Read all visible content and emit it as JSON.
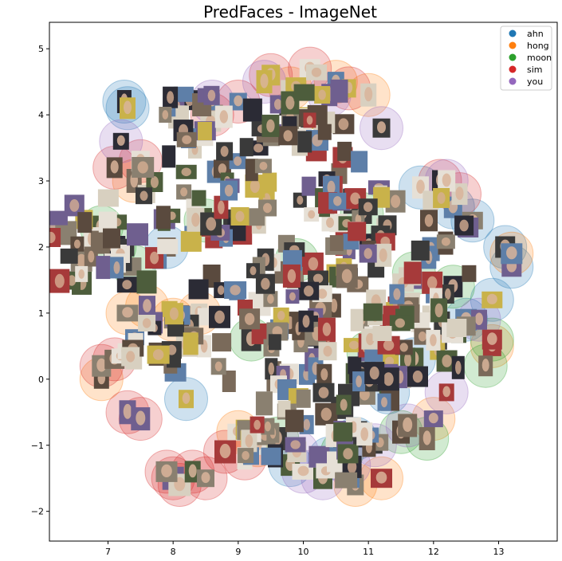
{
  "chart_data": {
    "type": "scatter",
    "title": "PredFaces - ImageNet",
    "xlabel": "",
    "ylabel": "",
    "xlim": [
      6.1,
      13.9
    ],
    "ylim": [
      -2.45,
      5.4
    ],
    "xticks": [
      7,
      8,
      9,
      10,
      11,
      12,
      13
    ],
    "yticks": [
      -2,
      -1,
      0,
      1,
      2,
      3,
      4,
      5
    ],
    "xtick_labels": [
      "7",
      "8",
      "9",
      "10",
      "11",
      "12",
      "13"
    ],
    "ytick_labels": [
      "−2",
      "−1",
      "0",
      "1",
      "2",
      "3",
      "4",
      "5"
    ],
    "grid": false,
    "legend_position": "top-right",
    "marker": "face-thumbnail over translucent circle",
    "series": [
      {
        "name": "ahn",
        "color": "#1f77b4",
        "points": [
          [
            7.25,
            4.2
          ],
          [
            7.3,
            4.1
          ],
          [
            11.8,
            2.9
          ],
          [
            12.3,
            2.6
          ],
          [
            12.6,
            2.4
          ],
          [
            13.1,
            2.0
          ],
          [
            13.2,
            1.7
          ],
          [
            12.9,
            1.2
          ],
          [
            12.5,
            0.9
          ],
          [
            11.7,
            0.3
          ],
          [
            11.3,
            -0.2
          ],
          [
            10.8,
            -0.9
          ],
          [
            10.4,
            -1.2
          ],
          [
            9.8,
            -1.3
          ],
          [
            8.2,
            -0.3
          ],
          [
            7.9,
            2.0
          ]
        ]
      },
      {
        "name": "hong",
        "color": "#ff7f0e",
        "points": [
          [
            7.3,
            1.0
          ],
          [
            7.6,
            1.1
          ],
          [
            8.0,
            0.9
          ],
          [
            8.4,
            1.0
          ],
          [
            10.5,
            4.5
          ],
          [
            11.0,
            4.3
          ],
          [
            13.2,
            1.9
          ],
          [
            12.9,
            0.5
          ],
          [
            11.2,
            -1.5
          ],
          [
            10.8,
            -1.6
          ],
          [
            9.3,
            -1.0
          ],
          [
            9.0,
            -0.8
          ],
          [
            6.9,
            0.0
          ],
          [
            7.4,
            3.0
          ],
          [
            9.8,
            4.4
          ],
          [
            12.0,
            -0.6
          ]
        ]
      },
      {
        "name": "moon",
        "color": "#2ca02c",
        "points": [
          [
            6.9,
            2.3
          ],
          [
            7.1,
            2.0
          ],
          [
            7.4,
            1.7
          ],
          [
            12.8,
            0.2
          ],
          [
            12.9,
            0.6
          ],
          [
            11.9,
            -0.9
          ],
          [
            11.5,
            -0.8
          ],
          [
            10.6,
            -1.1
          ],
          [
            9.6,
            -0.9
          ],
          [
            11.0,
            0.4
          ],
          [
            12.3,
            1.4
          ],
          [
            8.5,
            2.4
          ],
          [
            9.9,
            1.8
          ],
          [
            10.9,
            2.5
          ],
          [
            11.7,
            1.6
          ],
          [
            9.2,
            0.6
          ]
        ]
      },
      {
        "name": "sim",
        "color": "#d62728",
        "points": [
          [
            8.0,
            -1.5
          ],
          [
            8.1,
            -1.6
          ],
          [
            8.3,
            -1.4
          ],
          [
            8.5,
            -1.5
          ],
          [
            7.9,
            -1.4
          ],
          [
            6.9,
            0.2
          ],
          [
            7.1,
            0.3
          ],
          [
            7.3,
            -0.5
          ],
          [
            7.5,
            -0.6
          ],
          [
            7.1,
            3.2
          ],
          [
            7.5,
            3.3
          ],
          [
            8.6,
            4.0
          ],
          [
            9.0,
            4.2
          ],
          [
            9.5,
            4.6
          ],
          [
            10.1,
            4.7
          ],
          [
            10.7,
            4.4
          ],
          [
            12.1,
            3.0
          ],
          [
            12.4,
            2.8
          ],
          [
            9.1,
            -1.2
          ],
          [
            8.8,
            -1.1
          ]
        ]
      },
      {
        "name": "you",
        "color": "#9467bd",
        "points": [
          [
            10.0,
            -1.4
          ],
          [
            10.3,
            -1.5
          ],
          [
            10.7,
            -1.3
          ],
          [
            11.1,
            -1.0
          ],
          [
            11.6,
            -0.7
          ],
          [
            12.2,
            -0.2
          ],
          [
            12.7,
            0.9
          ],
          [
            12.2,
            3.0
          ],
          [
            11.2,
            3.8
          ],
          [
            10.4,
            4.3
          ],
          [
            9.4,
            4.5
          ],
          [
            8.6,
            4.2
          ],
          [
            7.2,
            3.6
          ],
          [
            9.9,
            -1.1
          ]
        ]
      }
    ]
  }
}
